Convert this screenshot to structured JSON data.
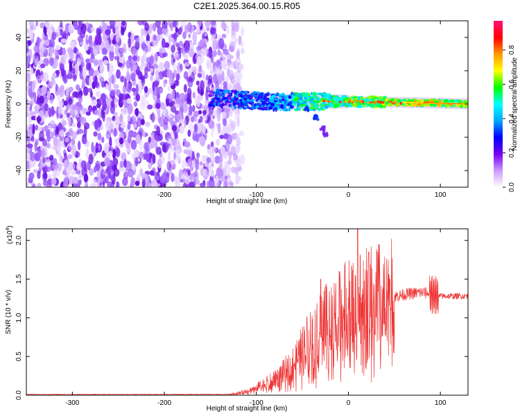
{
  "title": "C2E1.2025.364.00.15.R05",
  "chart_data": [
    {
      "type": "heatmap",
      "title": "C2E1.2025.364.00.15.R05",
      "xlabel": "Height of straight line (km)",
      "ylabel": "Frequency (Hz)",
      "xlim": [
        -350,
        130
      ],
      "ylim": [
        -50,
        50
      ],
      "x_ticks": [
        -300,
        -200,
        -100,
        0,
        100
      ],
      "y_ticks": [
        -40,
        -20,
        0,
        20,
        40
      ],
      "colorbar": {
        "label": "Normalized spectral amplitude",
        "range": [
          0,
          0.97
        ],
        "ticks": [
          0.0,
          0.2,
          0.4,
          0.6,
          0.8
        ],
        "colormap": [
          "#ffffff",
          "#cc99ff",
          "#7700ee",
          "#0000ff",
          "#00aaff",
          "#00ffff",
          "#00ff00",
          "#ffff00",
          "#ff9900",
          "#ff0000",
          "#ff1177"
        ]
      },
      "ridge": {
        "description_points": [
          [
            -150,
            4
          ],
          [
            -130,
            3
          ],
          [
            -100,
            2
          ],
          [
            -75,
            1
          ],
          [
            -50,
            1.5
          ],
          [
            -25,
            1.5
          ],
          [
            0,
            1.5
          ],
          [
            50,
            1
          ],
          [
            100,
            0.5
          ],
          [
            130,
            0
          ]
        ],
        "branch": [
          [
            -45,
            -3
          ],
          [
            -35,
            -8
          ],
          [
            -28,
            -15
          ],
          [
            -25,
            -18
          ]
        ]
      },
      "noise_region_x": [
        -350,
        -125
      ]
    },
    {
      "type": "line",
      "xlabel": "Height of straight line (km)",
      "ylabel": "SNR (10 * v/v)",
      "y_multiplier": "(x10",
      "y_multiplier_exp": "4",
      "xlim": [
        -350,
        130
      ],
      "ylim": [
        0,
        2.15
      ],
      "x_ticks": [
        -300,
        -200,
        -100,
        0,
        100
      ],
      "y_ticks": [
        0.0,
        0.5,
        1.0,
        1.5,
        2.0
      ],
      "y_tick_labels": [
        "0.0",
        "0.5",
        "1.0",
        "1.5",
        "2.0"
      ],
      "color": "#ee3333",
      "envelope": [
        [
          -350,
          0.01
        ],
        [
          -130,
          0.01
        ],
        [
          -110,
          0.05
        ],
        [
          -100,
          0.1
        ],
        [
          -80,
          0.2
        ],
        [
          -60,
          0.4
        ],
        [
          -40,
          0.75
        ],
        [
          -20,
          0.95
        ],
        [
          -10,
          1.05
        ],
        [
          0,
          1.1
        ],
        [
          10,
          1.15
        ],
        [
          20,
          1.2
        ],
        [
          40,
          1.25
        ],
        [
          60,
          1.3
        ],
        [
          80,
          1.33
        ],
        [
          90,
          1.3
        ],
        [
          100,
          1.28
        ],
        [
          130,
          1.28
        ]
      ],
      "peaks": [
        [
          -30,
          1.5
        ],
        [
          -10,
          1.6
        ],
        [
          10,
          2.15
        ],
        [
          22,
          1.85
        ],
        [
          33,
          1.95
        ],
        [
          45,
          1.5
        ],
        [
          93,
          1.6
        ]
      ]
    }
  ]
}
